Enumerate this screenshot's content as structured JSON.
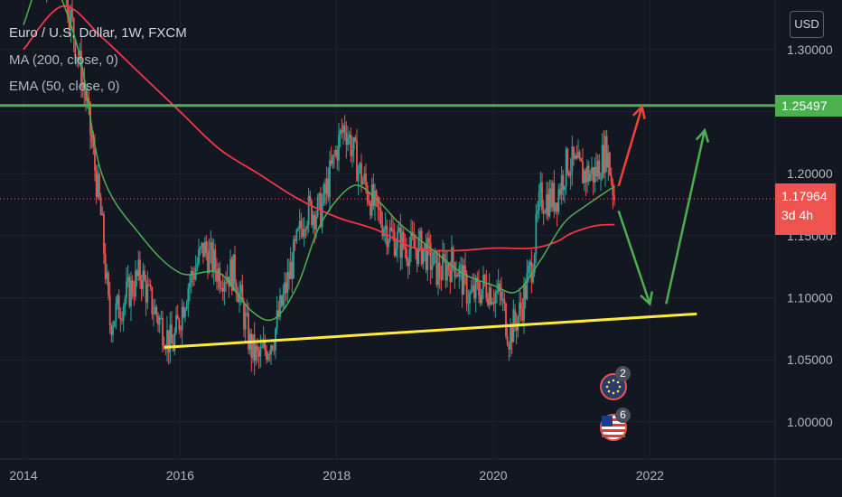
{
  "legend": {
    "title": "Euro / U.S. Dollar, 1W, FXCM",
    "ma": "MA (200, close, 0)",
    "ema": "EMA (50, close, 0)"
  },
  "currency": "USD",
  "price_labels": {
    "resistance": "1.25497",
    "current_price": "1.17964",
    "countdown": "3d 4h"
  },
  "events": [
    {
      "icon": "eu-flag-icon",
      "count": "2"
    },
    {
      "icon": "us-flag-icon",
      "count": "6"
    }
  ],
  "colors": {
    "background": "#131722",
    "up_candle": "#26a69a",
    "down_candle": "#ef5350",
    "ma200": "#f23645",
    "ema50": "#4caf50",
    "resistance_line": "#4caf50",
    "support_line": "#ffeb3b",
    "arrow_up_red": "#f44336",
    "arrow_green": "#4caf50"
  },
  "chart_data": {
    "type": "candlestick",
    "title": "Euro / U.S. Dollar, 1W, FXCM",
    "x_ticks": [
      "2014",
      "2016",
      "2018",
      "2020",
      "2022"
    ],
    "y_ticks": [
      "1.30000",
      "1.25000",
      "1.20000",
      "1.15000",
      "1.10000",
      "1.05000",
      "1.00000"
    ],
    "ylim": [
      0.97,
      1.34
    ],
    "xlim": [
      2013.7,
      2023.6
    ],
    "resistance_level": 1.25497,
    "current_price": 1.17964,
    "close_path": [
      [
        2014.0,
        1.37
      ],
      [
        2014.5,
        1.36
      ],
      [
        2014.8,
        1.26
      ],
      [
        2015.0,
        1.16
      ],
      [
        2015.1,
        1.08
      ],
      [
        2015.3,
        1.1
      ],
      [
        2015.5,
        1.12
      ],
      [
        2015.6,
        1.1
      ],
      [
        2015.9,
        1.06
      ],
      [
        2016.1,
        1.11
      ],
      [
        2016.3,
        1.14
      ],
      [
        2016.5,
        1.12
      ],
      [
        2016.7,
        1.12
      ],
      [
        2016.9,
        1.06
      ],
      [
        2017.0,
        1.05
      ],
      [
        2017.2,
        1.07
      ],
      [
        2017.4,
        1.12
      ],
      [
        2017.6,
        1.17
      ],
      [
        2017.8,
        1.17
      ],
      [
        2018.0,
        1.22
      ],
      [
        2018.1,
        1.24
      ],
      [
        2018.3,
        1.2
      ],
      [
        2018.5,
        1.17
      ],
      [
        2018.7,
        1.15
      ],
      [
        2018.9,
        1.14
      ],
      [
        2019.1,
        1.14
      ],
      [
        2019.3,
        1.12
      ],
      [
        2019.5,
        1.13
      ],
      [
        2019.7,
        1.1
      ],
      [
        2019.9,
        1.11
      ],
      [
        2020.1,
        1.1
      ],
      [
        2020.2,
        1.07
      ],
      [
        2020.35,
        1.09
      ],
      [
        2020.5,
        1.13
      ],
      [
        2020.6,
        1.18
      ],
      [
        2020.8,
        1.18
      ],
      [
        2020.95,
        1.21
      ],
      [
        2021.15,
        1.2
      ],
      [
        2021.3,
        1.2
      ],
      [
        2021.45,
        1.22
      ],
      [
        2021.55,
        1.18
      ]
    ],
    "ma200": [
      [
        2014.0,
        1.3
      ],
      [
        2014.5,
        1.335
      ],
      [
        2015.0,
        1.31
      ],
      [
        2015.5,
        1.28
      ],
      [
        2016.0,
        1.25
      ],
      [
        2016.5,
        1.22
      ],
      [
        2017.0,
        1.2
      ],
      [
        2017.5,
        1.18
      ],
      [
        2018.0,
        1.165
      ],
      [
        2018.5,
        1.155
      ],
      [
        2019.0,
        1.14
      ],
      [
        2019.5,
        1.138
      ],
      [
        2020.0,
        1.14
      ],
      [
        2020.5,
        1.14
      ],
      [
        2020.8,
        1.145
      ],
      [
        2021.0,
        1.152
      ],
      [
        2021.3,
        1.158
      ],
      [
        2021.55,
        1.159
      ]
    ],
    "ema50": [
      [
        2014.0,
        1.32
      ],
      [
        2014.3,
        1.36
      ],
      [
        2014.7,
        1.3
      ],
      [
        2015.0,
        1.2
      ],
      [
        2015.5,
        1.15
      ],
      [
        2016.0,
        1.12
      ],
      [
        2016.5,
        1.12
      ],
      [
        2016.9,
        1.09
      ],
      [
        2017.2,
        1.083
      ],
      [
        2017.5,
        1.11
      ],
      [
        2017.8,
        1.16
      ],
      [
        2018.2,
        1.19
      ],
      [
        2018.5,
        1.18
      ],
      [
        2018.8,
        1.16
      ],
      [
        2019.2,
        1.14
      ],
      [
        2019.6,
        1.12
      ],
      [
        2020.0,
        1.11
      ],
      [
        2020.3,
        1.105
      ],
      [
        2020.6,
        1.13
      ],
      [
        2020.9,
        1.16
      ],
      [
        2021.2,
        1.175
      ],
      [
        2021.55,
        1.19
      ]
    ],
    "support_line": [
      [
        2015.8,
        1.06
      ],
      [
        2022.6,
        1.087
      ]
    ],
    "arrows": [
      {
        "color": "red",
        "from": [
          2021.6,
          1.19
        ],
        "to": [
          2021.9,
          1.254
        ]
      },
      {
        "color": "green",
        "from": [
          2021.6,
          1.17
        ],
        "to": [
          2022.0,
          1.095
        ],
        "then": [
          2022.7,
          1.235
        ]
      }
    ],
    "grid": true
  }
}
